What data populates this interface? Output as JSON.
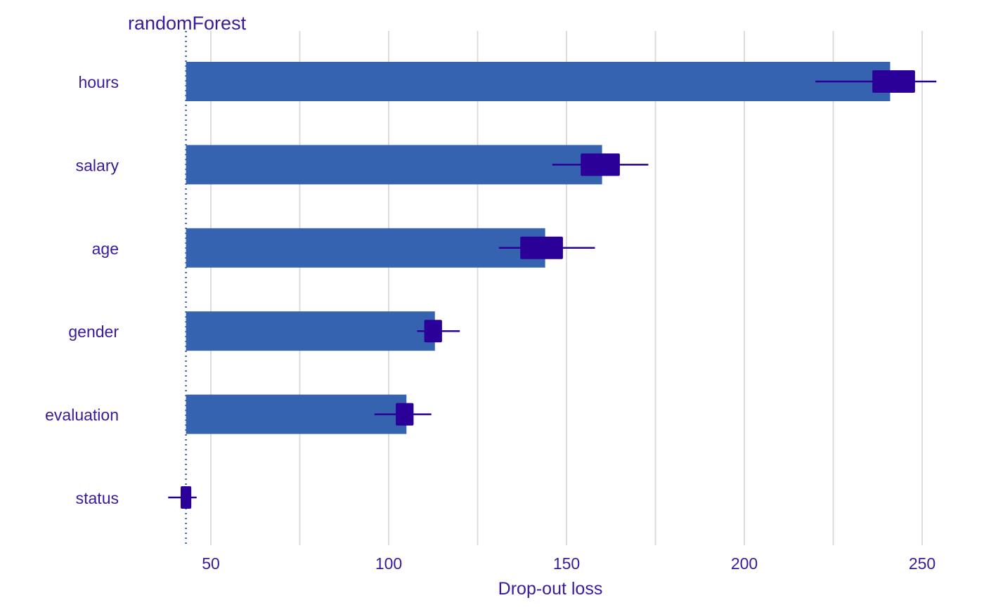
{
  "chart_data": {
    "type": "bar",
    "title": "randomForest",
    "xlabel": "Drop-out loss",
    "ylabel": "",
    "xlim": [
      35,
      255
    ],
    "xticks": [
      50,
      100,
      150,
      200,
      250
    ],
    "baseline": 43,
    "grid": true,
    "categories": [
      "hours",
      "salary",
      "age",
      "gender",
      "evaluation",
      "status"
    ],
    "values": [
      241,
      160,
      144,
      113,
      105,
      43
    ],
    "boxplots": [
      {
        "category": "hours",
        "min": 220,
        "q1": 236,
        "q3": 248,
        "max": 254
      },
      {
        "category": "salary",
        "min": 146,
        "q1": 154,
        "q3": 165,
        "max": 173
      },
      {
        "category": "age",
        "min": 131,
        "q1": 137,
        "q3": 149,
        "max": 158
      },
      {
        "category": "gender",
        "min": 108,
        "q1": 110,
        "q3": 115,
        "max": 120
      },
      {
        "category": "evaluation",
        "min": 96,
        "q1": 102,
        "q3": 107,
        "max": 112
      },
      {
        "category": "status",
        "min": 38,
        "q1": 41.5,
        "q3": 44.5,
        "max": 46
      }
    ],
    "colors": {
      "bar": "#3563B0",
      "box": "#2B0099",
      "whisker": "#2B0099",
      "text": "#3A1A9A",
      "grid": "#DCDCDC",
      "baseline": "#3563B0"
    }
  }
}
